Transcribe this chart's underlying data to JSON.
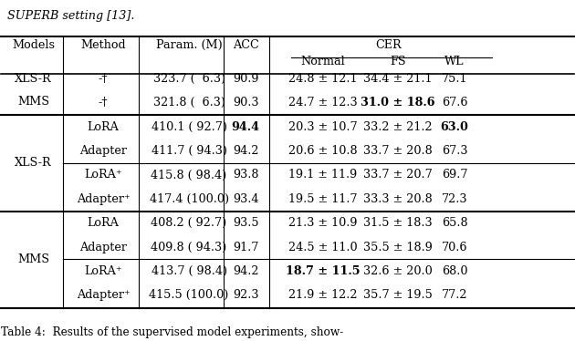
{
  "title_text": "SUPERB setting [13].",
  "caption_text": "Table 4:  Results of the supervised model experiments, show-",
  "rows": [
    {
      "model": "XLS-R",
      "method": "-†",
      "param": "323.7 (  6.3)",
      "acc": "90.9",
      "normal": "24.8 ± 12.1",
      "fs": "34.4 ± 21.1",
      "wl": "75.1",
      "group": "baseline",
      "bold_acc": false,
      "bold_normal": false,
      "bold_fs": false,
      "bold_wl": false
    },
    {
      "model": "MMS",
      "method": "-†",
      "param": "321.8 (  6.3)",
      "acc": "90.3",
      "normal": "24.7 ± 12.3",
      "fs": "31.0 ± 18.6",
      "wl": "67.6",
      "group": "baseline",
      "bold_acc": false,
      "bold_normal": false,
      "bold_fs": true,
      "bold_wl": false
    },
    {
      "model": "XLS-R",
      "method": "LoRA",
      "param": "410.1 ( 92.7)",
      "acc": "94.4",
      "normal": "20.3 ± 10.7",
      "fs": "33.2 ± 21.2",
      "wl": "63.0",
      "group": "xlsr_1",
      "bold_acc": true,
      "bold_normal": false,
      "bold_fs": false,
      "bold_wl": true
    },
    {
      "model": "",
      "method": "Adapter",
      "param": "411.7 ( 94.3)",
      "acc": "94.2",
      "normal": "20.6 ± 10.8",
      "fs": "33.7 ± 20.8",
      "wl": "67.3",
      "group": "xlsr_1",
      "bold_acc": false,
      "bold_normal": false,
      "bold_fs": false,
      "bold_wl": false
    },
    {
      "model": "",
      "method": "LoRA⁺",
      "param": "415.8 ( 98.4)",
      "acc": "93.8",
      "normal": "19.1 ± 11.9",
      "fs": "33.7 ± 20.7",
      "wl": "69.7",
      "group": "xlsr_2",
      "bold_acc": false,
      "bold_normal": false,
      "bold_fs": false,
      "bold_wl": false
    },
    {
      "model": "",
      "method": "Adapter⁺",
      "param": "417.4 (100.0)",
      "acc": "93.4",
      "normal": "19.5 ± 11.7",
      "fs": "33.3 ± 20.8",
      "wl": "72.3",
      "group": "xlsr_2",
      "bold_acc": false,
      "bold_normal": false,
      "bold_fs": false,
      "bold_wl": false
    },
    {
      "model": "MMS",
      "method": "LoRA",
      "param": "408.2 ( 92.7)",
      "acc": "93.5",
      "normal": "21.3 ± 10.9",
      "fs": "31.5 ± 18.3",
      "wl": "65.8",
      "group": "mms_1",
      "bold_acc": false,
      "bold_normal": false,
      "bold_fs": false,
      "bold_wl": false
    },
    {
      "model": "",
      "method": "Adapter",
      "param": "409.8 ( 94.3)",
      "acc": "91.7",
      "normal": "24.5 ± 11.0",
      "fs": "35.5 ± 18.9",
      "wl": "70.6",
      "group": "mms_1",
      "bold_acc": false,
      "bold_normal": false,
      "bold_fs": false,
      "bold_wl": false
    },
    {
      "model": "",
      "method": "LoRA⁺",
      "param": "413.7 ( 98.4)",
      "acc": "94.2",
      "normal": "18.7 ± 11.5",
      "fs": "32.6 ± 20.0",
      "wl": "68.0",
      "group": "mms_2",
      "bold_acc": false,
      "bold_normal": true,
      "bold_fs": false,
      "bold_wl": false
    },
    {
      "model": "",
      "method": "Adapter⁺",
      "param": "415.5 (100.0)",
      "acc": "92.3",
      "normal": "21.9 ± 12.2",
      "fs": "35.7 ± 19.5",
      "wl": "77.2",
      "group": "mms_2",
      "bold_acc": false,
      "bold_normal": false,
      "bold_fs": false,
      "bold_wl": false
    }
  ],
  "bg_color": "white",
  "font_size": 9.2
}
